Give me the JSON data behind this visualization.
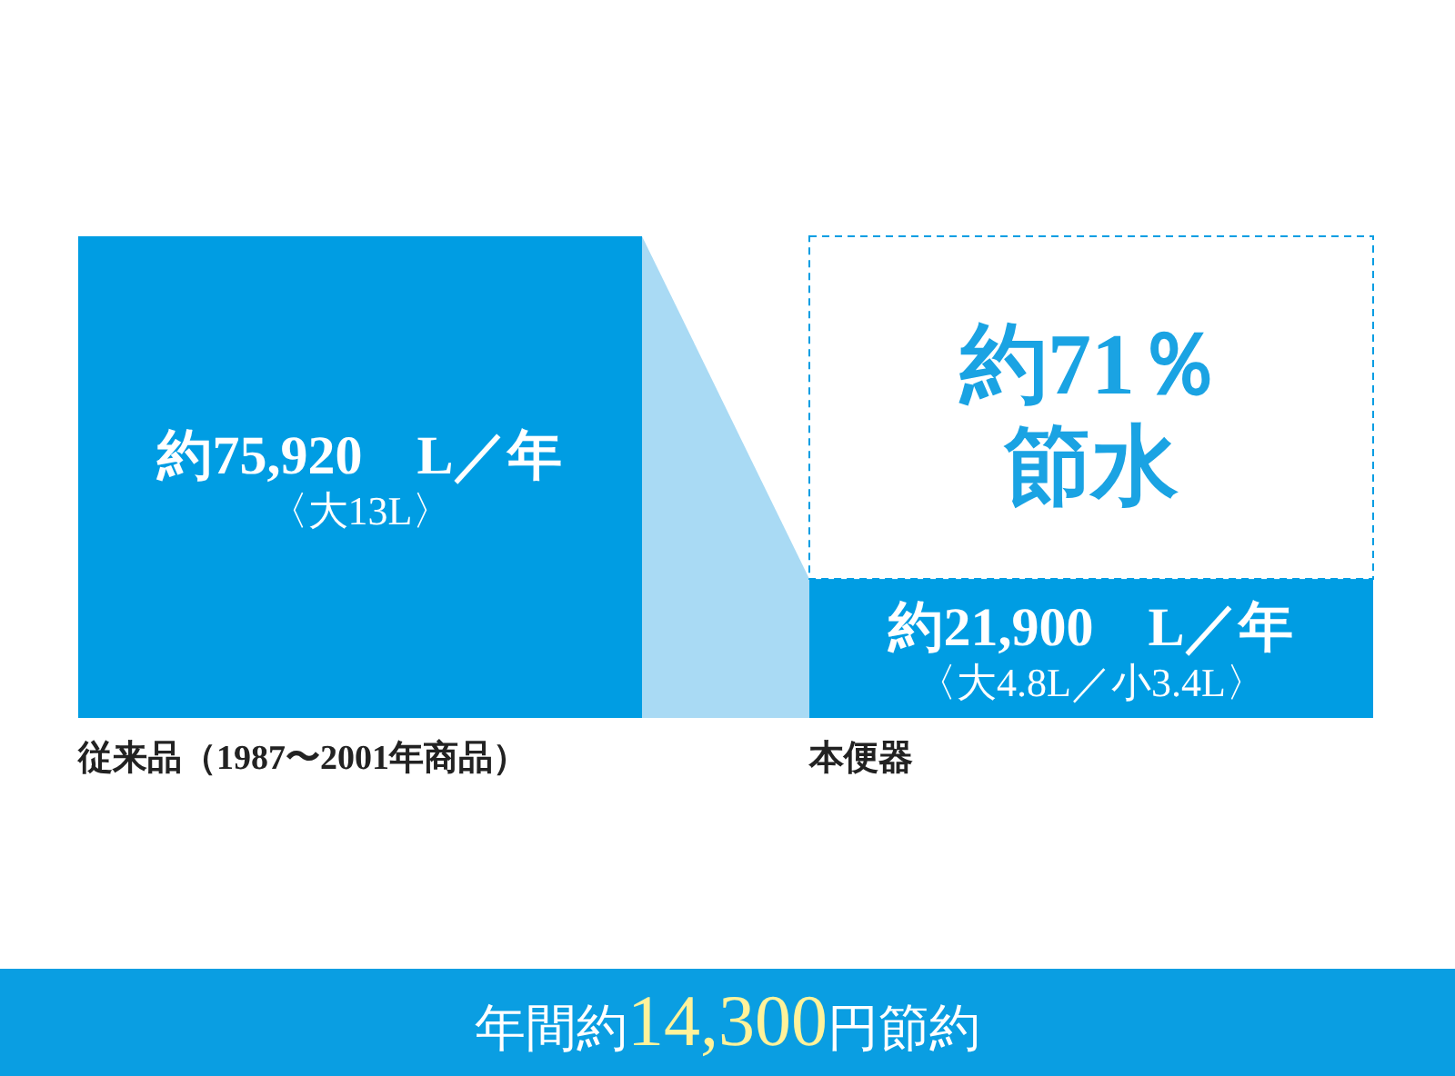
{
  "chart_data": {
    "type": "bar",
    "categories": [
      "従来品（1987〜2001年商品）",
      "本便器"
    ],
    "values": [
      75920,
      21900
    ],
    "colors": [
      "#009de3",
      "#009de3"
    ],
    "value_labels": [
      "約75,920　L／年〈大13L〉",
      "約21,900　L／年〈大4.8L／小3.4L〉"
    ],
    "annotations": [
      "約71％節水",
      "年間約14,300円節約"
    ]
  }
}
